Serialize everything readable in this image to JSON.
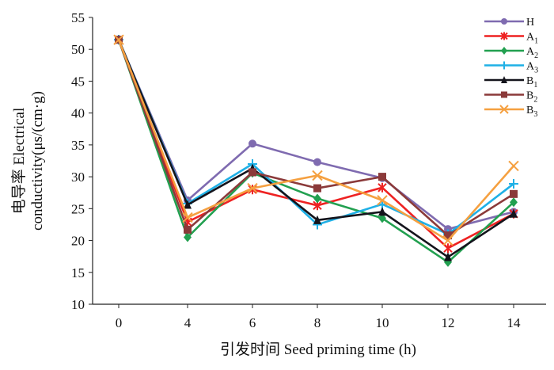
{
  "chart_data": {
    "type": "line",
    "xlabel": "引发时间 Seed priming time (h)",
    "ylabel_lines": [
      "电导率 Electrical",
      "conductivity(μs/(cm·g)"
    ],
    "categories": [
      "0",
      "4",
      "6",
      "8",
      "10",
      "12",
      "14"
    ],
    "ylim": [
      10,
      55
    ],
    "yticks": [
      "10",
      "15",
      "20",
      "25",
      "30",
      "35",
      "40",
      "45",
      "50",
      "55"
    ],
    "grid": false,
    "legend_position": "top-right",
    "series": [
      {
        "name": "H",
        "base": "H",
        "sub": "",
        "color": "#7f6bb0",
        "marker": "circle",
        "values": [
          51.5,
          26.3,
          35.2,
          32.3,
          29.8,
          21.8,
          24.5
        ]
      },
      {
        "name": "A1",
        "base": "A",
        "sub": "1",
        "color": "#ee2222",
        "marker": "asterisk",
        "values": [
          51.5,
          22.9,
          28.0,
          25.5,
          28.3,
          18.8,
          24.2
        ]
      },
      {
        "name": "A2",
        "base": "A",
        "sub": "2",
        "color": "#22a050",
        "marker": "diamond",
        "values": [
          51.5,
          20.5,
          30.6,
          26.6,
          23.5,
          16.6,
          26.0
        ]
      },
      {
        "name": "A3",
        "base": "A",
        "sub": "3",
        "color": "#1fb0e6",
        "marker": "plus",
        "values": [
          51.5,
          25.8,
          32.0,
          22.5,
          25.7,
          21.0,
          28.9
        ]
      },
      {
        "name": "B1",
        "base": "B",
        "sub": "1",
        "color": "#14141c",
        "marker": "triangle",
        "values": [
          51.5,
          25.6,
          31.3,
          23.2,
          24.5,
          17.4,
          24.2
        ]
      },
      {
        "name": "B2",
        "base": "B",
        "sub": "2",
        "color": "#8b3a3a",
        "marker": "square",
        "values": [
          51.5,
          21.7,
          30.7,
          28.2,
          30.0,
          20.8,
          27.3
        ]
      },
      {
        "name": "B3",
        "base": "B",
        "sub": "3",
        "color": "#f5a040",
        "marker": "x",
        "values": [
          51.5,
          23.6,
          28.2,
          30.2,
          26.3,
          20.0,
          31.7
        ]
      }
    ]
  }
}
